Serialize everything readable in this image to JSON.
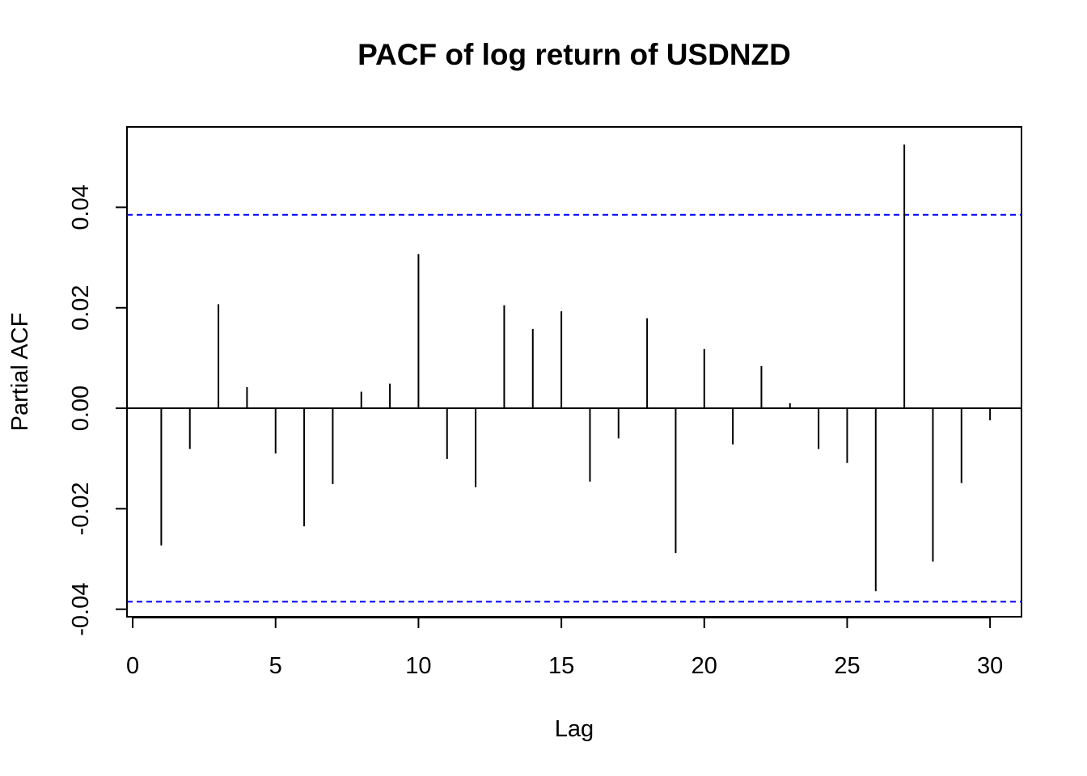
{
  "chart_data": {
    "type": "bar",
    "title": "PACF of log return of USDNZD",
    "xlabel": "Lag",
    "ylabel": "Partial ACF",
    "xlim": [
      -0.2,
      31.1
    ],
    "ylim": [
      -0.0415,
      0.056
    ],
    "x_ticks": [
      0,
      5,
      10,
      15,
      20,
      25,
      30
    ],
    "x_tick_labels": [
      "0",
      "5",
      "10",
      "15",
      "20",
      "25",
      "30"
    ],
    "y_ticks": [
      -0.04,
      -0.02,
      0.0,
      0.02,
      0.04
    ],
    "y_tick_labels": [
      "-0.04",
      "-0.02",
      "0.00",
      "0.02",
      "0.04"
    ],
    "lags": [
      1,
      2,
      3,
      4,
      5,
      6,
      7,
      8,
      9,
      10,
      11,
      12,
      13,
      14,
      15,
      16,
      17,
      18,
      19,
      20,
      21,
      22,
      23,
      24,
      25,
      26,
      27,
      28,
      29,
      30
    ],
    "values": [
      -0.0273,
      -0.0081,
      0.0207,
      0.0042,
      -0.009,
      -0.0235,
      -0.0151,
      0.0033,
      0.0049,
      0.0307,
      -0.0101,
      -0.0157,
      0.0205,
      0.0158,
      0.0193,
      -0.0146,
      -0.006,
      0.0179,
      -0.0288,
      0.0118,
      -0.0072,
      0.0084,
      0.001,
      -0.0081,
      -0.0109,
      -0.0364,
      0.0525,
      -0.0305,
      -0.0149,
      -0.0024
    ],
    "confidence_band": 0.0385,
    "colors": {
      "bars": "#000000",
      "zero_line": "#000000",
      "confidence_lines": "#0000ff",
      "frame": "#000000"
    },
    "grid": false,
    "legend": "none"
  }
}
